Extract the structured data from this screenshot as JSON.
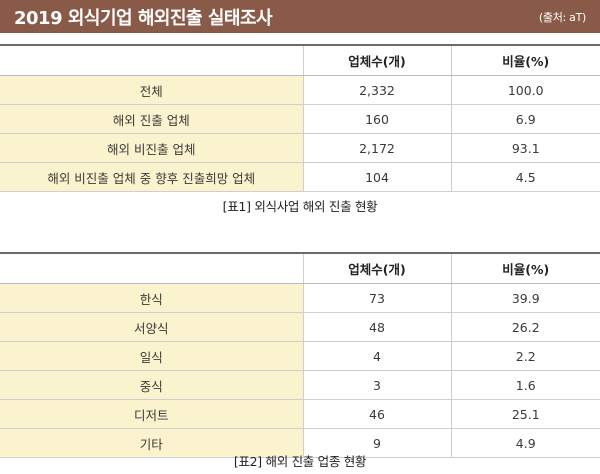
{
  "header": {
    "title": "2019 외식기업 해외진출 실태조사",
    "source": "(출처: aT)"
  },
  "colors": {
    "title_bar": "#8a5a48",
    "label_cell": "#fbf3cd"
  },
  "table1": {
    "columns": [
      "",
      "업체수(개)",
      "비율(%)"
    ],
    "rows": [
      {
        "label": "전체",
        "count": "2,332",
        "ratio": "100.0"
      },
      {
        "label": "해외 진출 업체",
        "count": "160",
        "ratio": "6.9"
      },
      {
        "label": "해외 비진출 업체",
        "count": "2,172",
        "ratio": "93.1"
      },
      {
        "label": "해외 비진출 업체 중 향후 진출희망 업체",
        "count": "104",
        "ratio": "4.5"
      }
    ],
    "caption": "[표1] 외식사업 해외 진출 현황"
  },
  "table2": {
    "columns": [
      "",
      "업체수(개)",
      "비율(%)"
    ],
    "rows": [
      {
        "label": "한식",
        "count": "73",
        "ratio": "39.9"
      },
      {
        "label": "서양식",
        "count": "48",
        "ratio": "26.2"
      },
      {
        "label": "일식",
        "count": "4",
        "ratio": "2.2"
      },
      {
        "label": "중식",
        "count": "3",
        "ratio": "1.6"
      },
      {
        "label": "디저트",
        "count": "46",
        "ratio": "25.1"
      },
      {
        "label": "기타",
        "count": "9",
        "ratio": "4.9"
      }
    ],
    "caption": "[표2] 해외 진출 업종 현황"
  }
}
